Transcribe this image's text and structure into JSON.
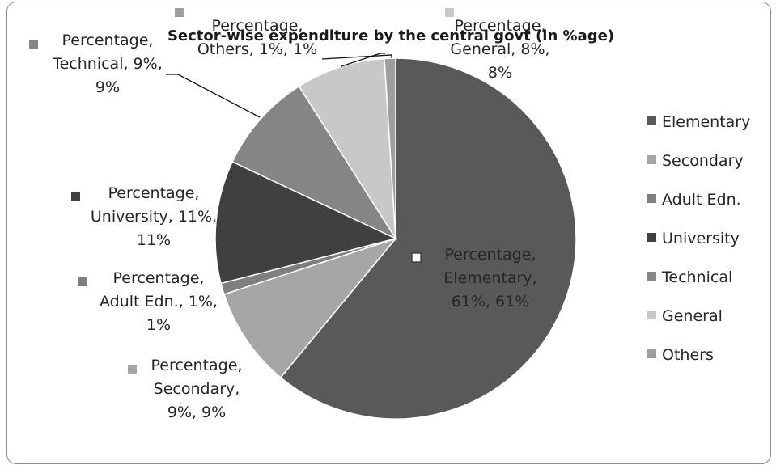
{
  "chart_data": {
    "type": "pie",
    "title": "Sector-wise expenditure by the central govt (in %age)",
    "series_name": "Percentage",
    "categories": [
      "Elementary",
      "Secondary",
      "Adult Edn.",
      "University",
      "Technical",
      "General",
      "Others"
    ],
    "values": [
      61,
      9,
      1,
      11,
      9,
      8,
      1
    ],
    "colors": [
      "#595959",
      "#a6a6a6",
      "#7f7f7f",
      "#404040",
      "#858585",
      "#c8c8c8",
      "#9e9e9e"
    ],
    "legend_position": "right",
    "data_labels": [
      [
        "Percentage,",
        "Elementary,",
        "61%, 61%"
      ],
      [
        "Percentage,",
        "Secondary,",
        "9%, 9%"
      ],
      [
        "Percentage,",
        "Adult Edn., 1%,",
        "1%"
      ],
      [
        "Percentage,",
        "University, 11%,",
        "11%"
      ],
      [
        "Percentage,",
        "Technical, 9%,",
        "9%"
      ],
      [
        "Percentage,",
        "General, 8%,",
        "8%"
      ],
      [
        "Percentage,",
        "Others, 1%, 1%"
      ]
    ]
  }
}
